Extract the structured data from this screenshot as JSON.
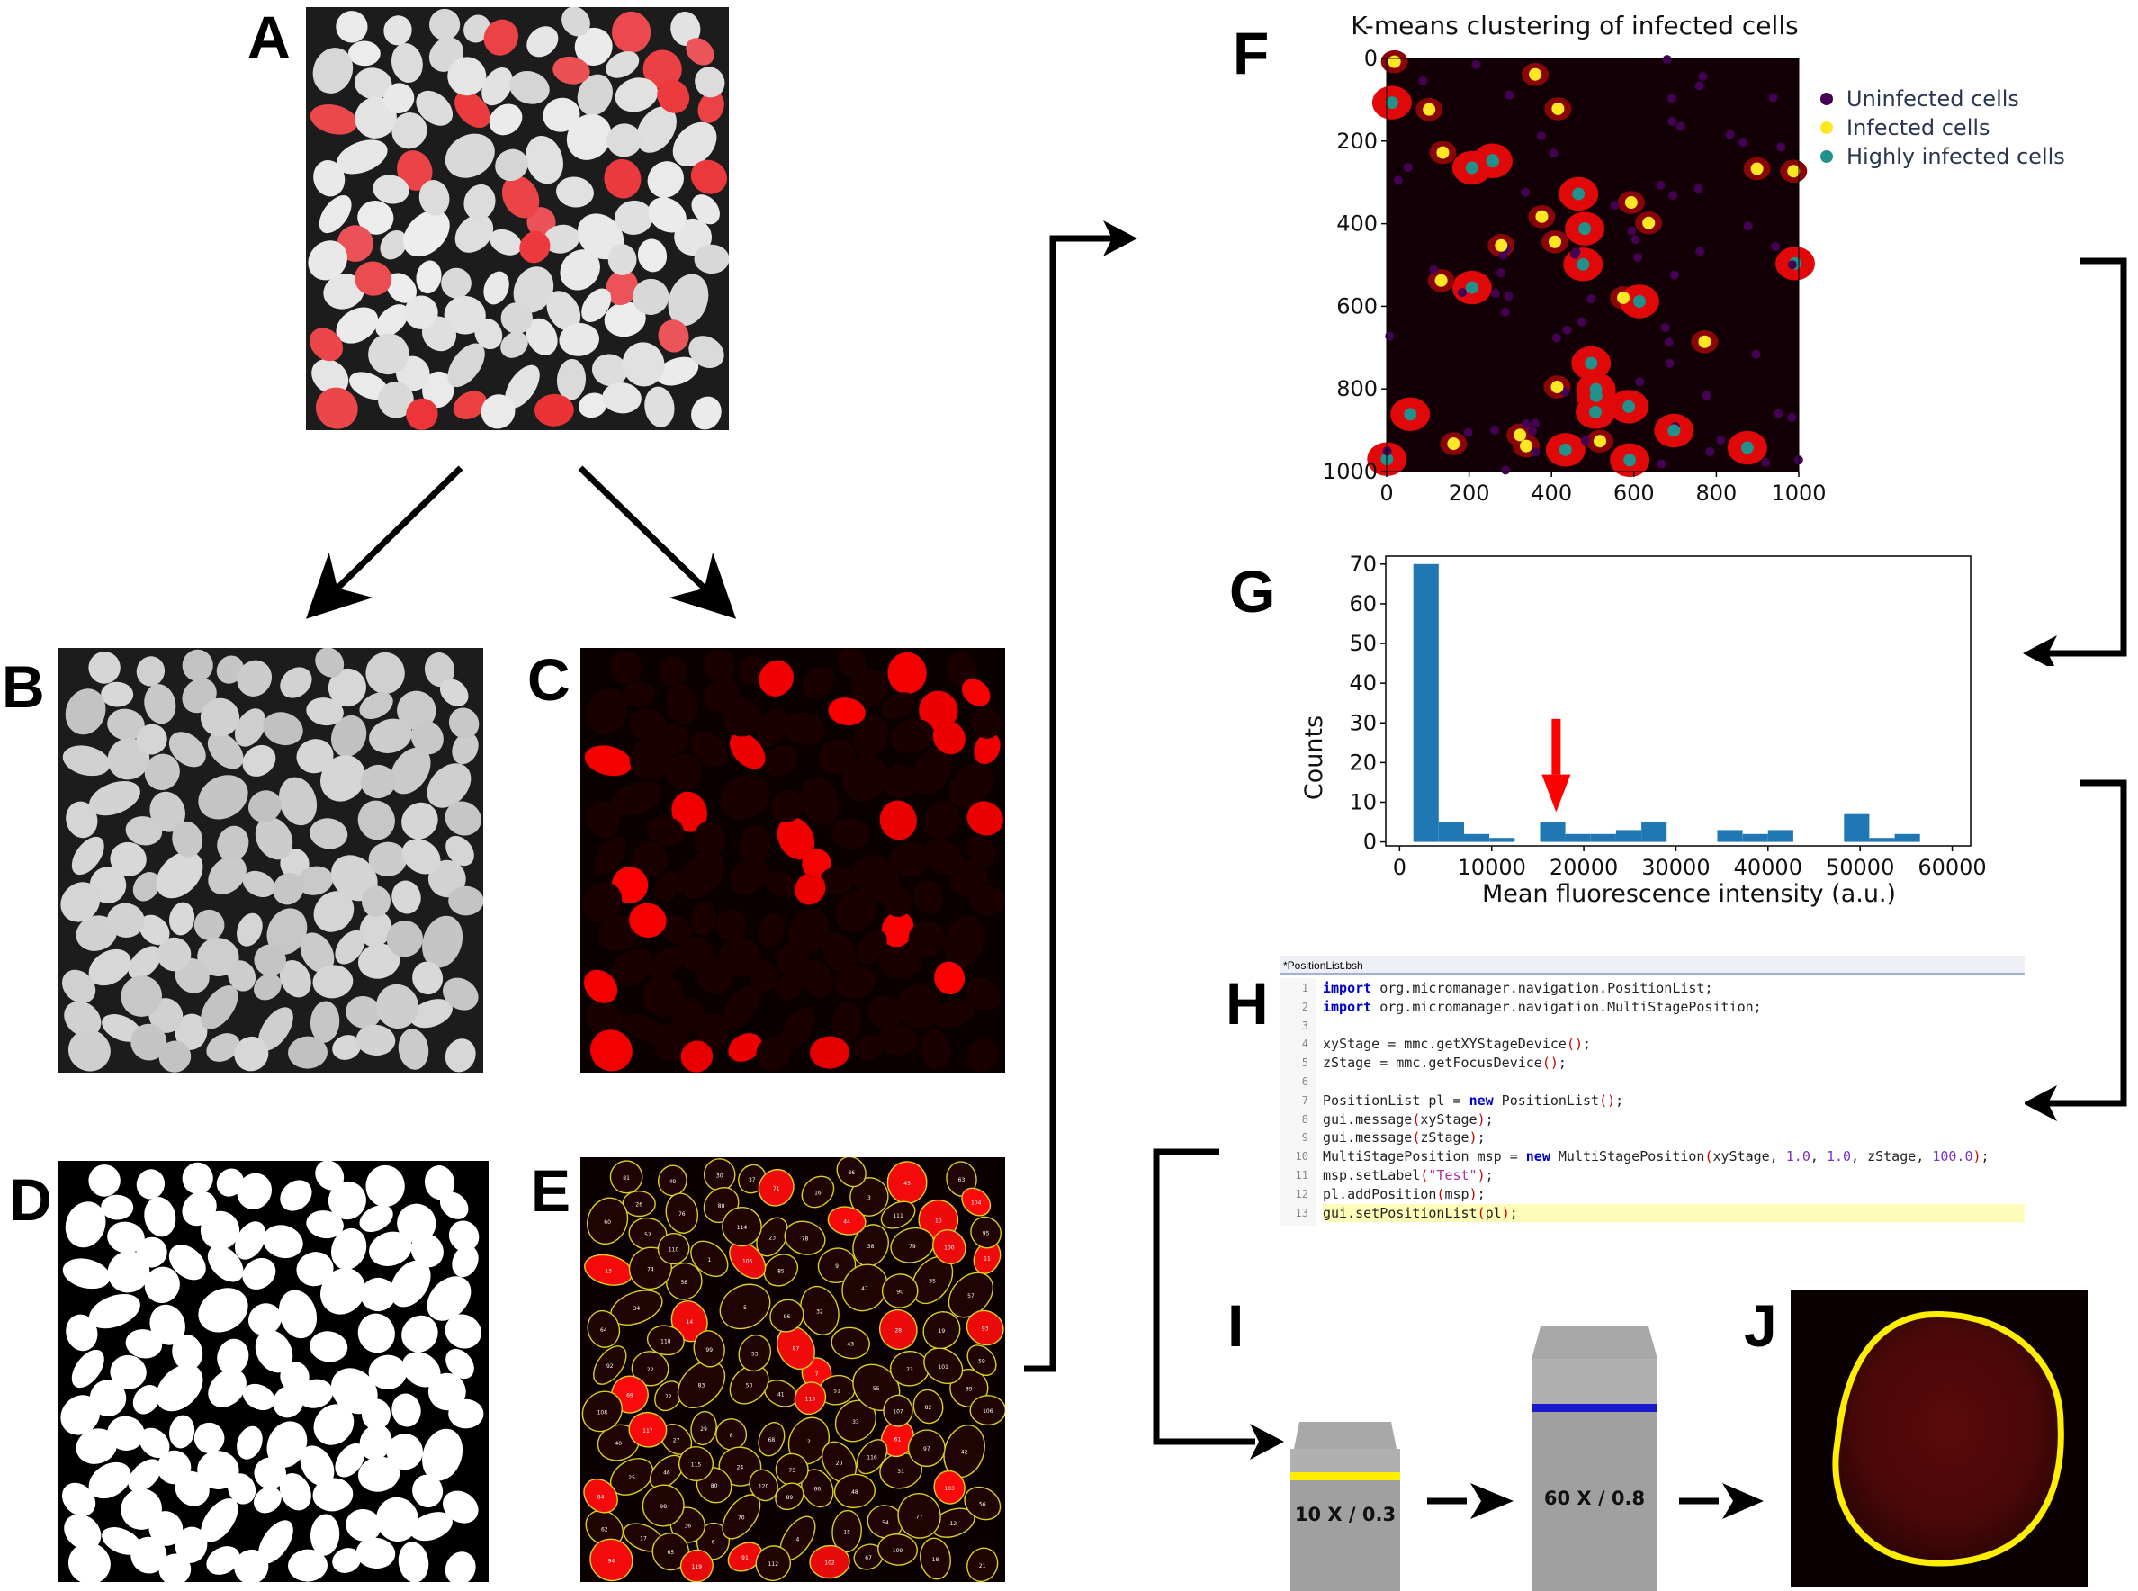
{
  "panels": {
    "A": "A",
    "B": "B",
    "C": "C",
    "D": "D",
    "E": "E",
    "F": "F",
    "G": "G",
    "H": "H",
    "I": "I",
    "J": "J"
  },
  "panel_f": {
    "title": "K-means clustering of infected cells",
    "x_ticks": [
      "0",
      "200",
      "400",
      "600",
      "800",
      "1000"
    ],
    "y_ticks": [
      "0",
      "200",
      "400",
      "600",
      "800",
      "1000"
    ],
    "legend": [
      "Uninfected cells",
      "Infected cells",
      "Highly infected cells"
    ],
    "colors": {
      "uninfected": "#440154",
      "infected": "#fde725",
      "highly_infected": "#21918c"
    }
  },
  "chart_data": {
    "type": "bar",
    "xlabel": "Mean fluorescence intensity (a.u.)",
    "ylabel": "Counts",
    "xlim": [
      0,
      60000
    ],
    "ylim": [
      0,
      72
    ],
    "x_ticks": [
      "0",
      "10000",
      "20000",
      "30000",
      "40000",
      "50000",
      "60000"
    ],
    "y_ticks": [
      "0",
      "10",
      "20",
      "30",
      "40",
      "50",
      "60",
      "70"
    ],
    "bin_starts": [
      1500,
      4250,
      7000,
      9750,
      12500,
      15250,
      18000,
      20750,
      23500,
      26250,
      29000,
      31750,
      34500,
      37250,
      40000,
      42750,
      45500,
      48250,
      51000,
      53750
    ],
    "bin_width": 2750,
    "values": [
      70,
      5,
      2,
      1,
      0,
      5,
      2,
      2,
      3,
      5,
      0,
      0,
      3,
      2,
      3,
      0,
      0,
      7,
      1,
      2
    ],
    "annotation": {
      "type": "arrow",
      "x": 17000,
      "color": "#ff0000"
    },
    "bar_color": "#1f77b4"
  },
  "panel_h": {
    "filename": "*PositionList.bsh",
    "lines": [
      {
        "n": "1",
        "parts": [
          [
            "kw",
            "import"
          ],
          [
            "t",
            " org.micromanager.navigation.PositionList;"
          ]
        ]
      },
      {
        "n": "2",
        "parts": [
          [
            "kw",
            "import"
          ],
          [
            "t",
            " org.micromanager.navigation.MultiStagePosition;"
          ]
        ]
      },
      {
        "n": "3",
        "parts": []
      },
      {
        "n": "4",
        "parts": [
          [
            "t",
            "xyStage = mmc.getXYStageDevice"
          ],
          [
            "par",
            "()"
          ],
          [
            "t",
            ";"
          ]
        ]
      },
      {
        "n": "5",
        "parts": [
          [
            "t",
            "zStage = mmc.getFocusDevice"
          ],
          [
            "par",
            "()"
          ],
          [
            "t",
            ";"
          ]
        ]
      },
      {
        "n": "6",
        "parts": []
      },
      {
        "n": "7",
        "parts": [
          [
            "t",
            "PositionList pl = "
          ],
          [
            "kw",
            "new"
          ],
          [
            "t",
            " PositionList"
          ],
          [
            "par",
            "()"
          ],
          [
            "t",
            ";"
          ]
        ]
      },
      {
        "n": "8",
        "parts": [
          [
            "t",
            "gui.message"
          ],
          [
            "par",
            "("
          ],
          [
            "t",
            "xyStage"
          ],
          [
            "par",
            ")"
          ],
          [
            "t",
            ";"
          ]
        ]
      },
      {
        "n": "9",
        "parts": [
          [
            "t",
            "gui.message"
          ],
          [
            "par",
            "("
          ],
          [
            "t",
            "zStage"
          ],
          [
            "par",
            ")"
          ],
          [
            "t",
            ";"
          ]
        ]
      },
      {
        "n": "10",
        "parts": [
          [
            "t",
            "MultiStagePosition msp = "
          ],
          [
            "kw",
            "new"
          ],
          [
            "t",
            " MultiStagePosition"
          ],
          [
            "par",
            "("
          ],
          [
            "t",
            "xyStage, "
          ],
          [
            "num",
            "1.0"
          ],
          [
            "t",
            ", "
          ],
          [
            "num",
            "1.0"
          ],
          [
            "t",
            ", zStage, "
          ],
          [
            "num",
            "100.0"
          ],
          [
            "par",
            ")"
          ],
          [
            "t",
            ";"
          ]
        ]
      },
      {
        "n": "11",
        "parts": [
          [
            "t",
            "msp.setLabel"
          ],
          [
            "par",
            "("
          ],
          [
            "str",
            "\"Test\""
          ],
          [
            "par",
            ")"
          ],
          [
            "t",
            ";"
          ]
        ]
      },
      {
        "n": "12",
        "parts": [
          [
            "t",
            "pl.addPosition"
          ],
          [
            "par",
            "("
          ],
          [
            "t",
            "msp"
          ],
          [
            "par",
            ")"
          ],
          [
            "t",
            ";"
          ]
        ]
      },
      {
        "n": "13",
        "parts": [
          [
            "t",
            "gui.setPositionList"
          ],
          [
            "par",
            "("
          ],
          [
            "t",
            "pl"
          ],
          [
            "par",
            ")"
          ],
          [
            "t",
            ";"
          ]
        ],
        "highlight": true
      }
    ]
  },
  "panel_i": {
    "objective_low": "10 X / 0.3",
    "objective_high": "60 X / 0.8",
    "band_low_color": "#ffee00",
    "band_high_color": "#1a1acc"
  }
}
